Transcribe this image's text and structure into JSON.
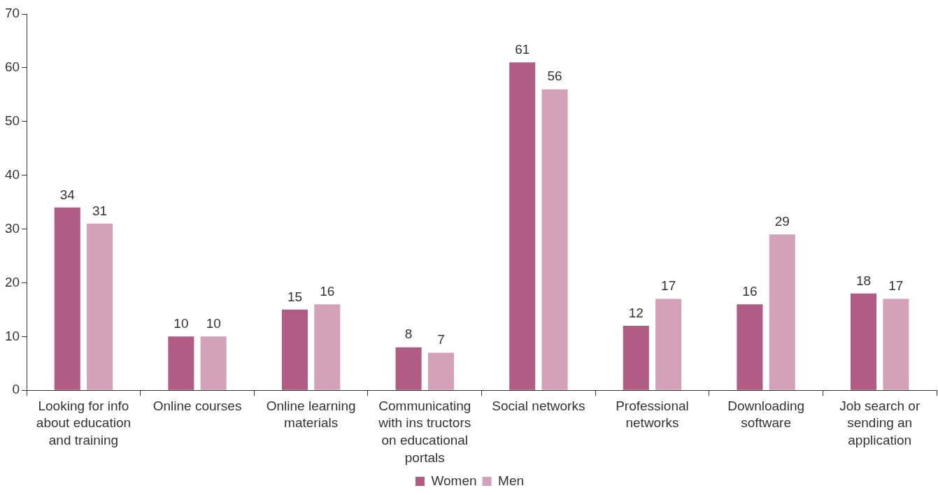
{
  "chart_data": {
    "type": "bar",
    "categories": [
      "Looking for info about education and training",
      "Online courses",
      "Online learning materials",
      "Communicating with ins tructors on educational portals",
      "Social networks",
      "Professional networks",
      "Downloading software",
      "Job search or sending an application"
    ],
    "series": [
      {
        "name": "Women",
        "color": "#b05c84",
        "values": [
          34,
          10,
          15,
          8,
          61,
          12,
          16,
          18
        ]
      },
      {
        "name": "Men",
        "color": "#d3a2b8",
        "values": [
          31,
          10,
          16,
          7,
          56,
          17,
          29,
          17
        ]
      }
    ],
    "ylim": [
      0,
      70
    ],
    "yticks": [
      0,
      10,
      20,
      30,
      40,
      50,
      60,
      70
    ],
    "grid": false,
    "legend": "bottom",
    "data_labels": true
  }
}
